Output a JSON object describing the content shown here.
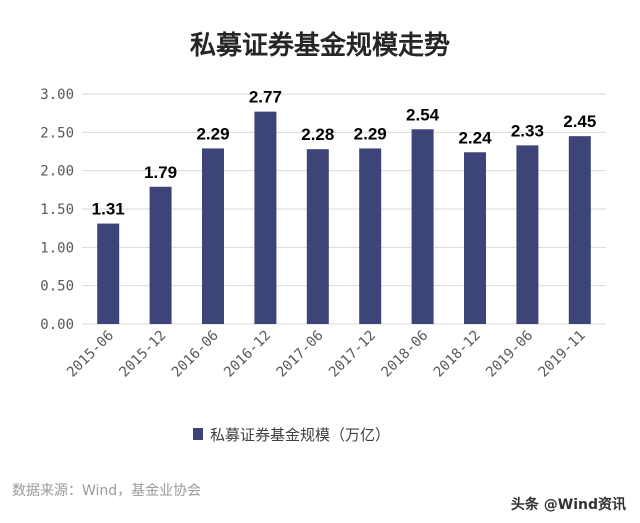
{
  "chart_data": {
    "type": "bar",
    "title": "私募证券基金规模走势",
    "categories": [
      "2015-06",
      "2015-12",
      "2016-06",
      "2016-12",
      "2017-06",
      "2017-12",
      "2018-06",
      "2018-12",
      "2019-06",
      "2019-11"
    ],
    "series": [
      {
        "name": "私募证券基金规模（万亿）",
        "values": [
          1.31,
          1.79,
          2.29,
          2.77,
          2.28,
          2.29,
          2.54,
          2.24,
          2.33,
          2.45
        ],
        "labels": [
          "1.31",
          "1.79",
          "2.29",
          "2.77",
          "2.28",
          "2.29",
          "2.54",
          "2.24",
          "2.33",
          "2.45"
        ],
        "color": "#3d4578"
      }
    ],
    "ylim": [
      0,
      3.0
    ],
    "yticks": [
      "0.00",
      "0.50",
      "1.00",
      "1.50",
      "2.00",
      "2.50",
      "3.00"
    ],
    "grid": true,
    "legend": "bottom",
    "xlabel": "",
    "ylabel": ""
  },
  "footer": {
    "source": "数据来源：Wind，基金业协会",
    "watermark": "头条 @Wind资讯"
  },
  "colors": {
    "grid": "#d9d9d9",
    "axis_text": "#595959"
  }
}
